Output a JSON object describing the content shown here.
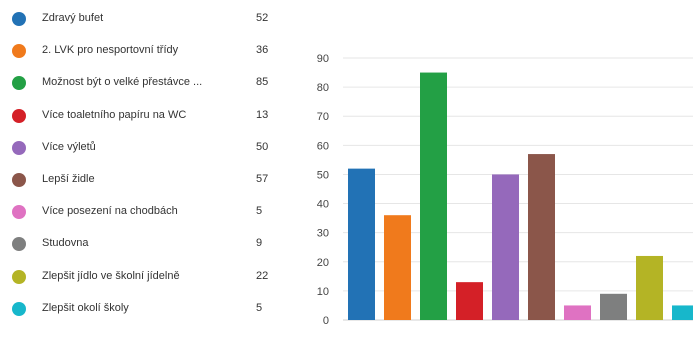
{
  "chart_data": {
    "type": "bar",
    "categories": [
      "Zdravý bufet",
      "2. LVK pro nesportovní třídy",
      "Možnost být o velké přestávce ...",
      "Více toaletního papíru na WC",
      "Více výletů",
      "Lepší židle",
      "Více posezení na chodbách",
      "Studovna",
      "Zlepšit jídlo ve školní jídelně",
      "Zlepšit okolí školy"
    ],
    "values": [
      52,
      36,
      85,
      13,
      50,
      57,
      5,
      9,
      22,
      5
    ],
    "colors": [
      "#2272b5",
      "#f07a1c",
      "#23a045",
      "#d42027",
      "#9569bb",
      "#8b564a",
      "#df72c2",
      "#7e7f7f",
      "#b4b425",
      "#17b7cb"
    ],
    "ylim": [
      0,
      90
    ],
    "yticks": [
      "0",
      "10",
      "20",
      "30",
      "40",
      "50",
      "60",
      "70",
      "80",
      "90"
    ],
    "grid": true,
    "legend_position": "left"
  }
}
